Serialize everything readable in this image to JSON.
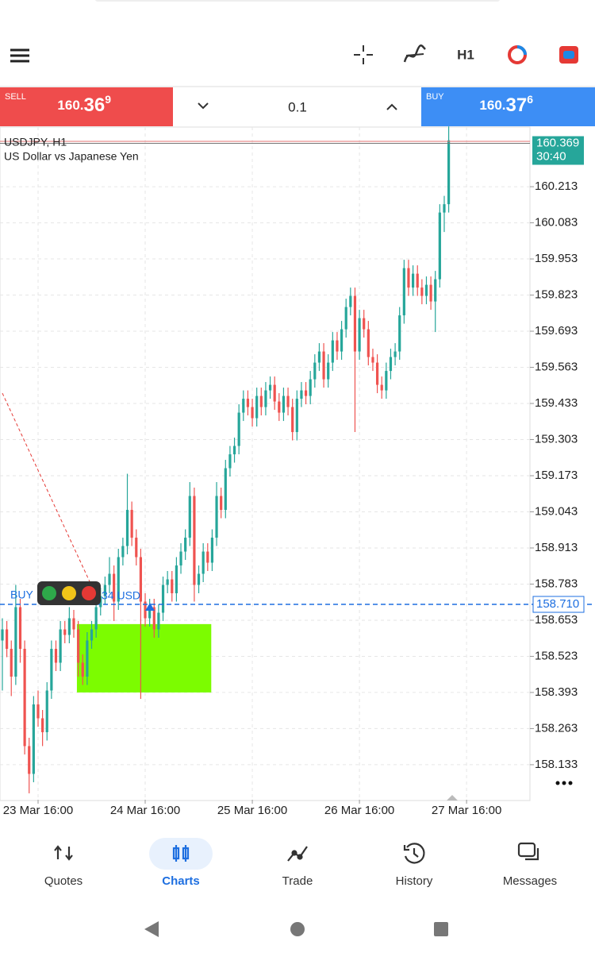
{
  "toolbar": {
    "timeframe": "H1"
  },
  "trade_panel": {
    "sell_label": "SELL",
    "sell_price": "160.369",
    "lot": "0.1",
    "buy_label": "BUY",
    "buy_price": "160.376"
  },
  "chart_data": {
    "type": "candlestick",
    "title": "USDJPY, H1",
    "subtitle": "US Dollar vs Japanese Yen",
    "up_color": "#26a69a",
    "down_color": "#ef5350",
    "grid": true,
    "ylim": [
      158.007,
      160.419
    ],
    "yticks": [
      158.133,
      158.263,
      158.393,
      158.523,
      158.653,
      158.783,
      158.913,
      159.043,
      159.173,
      159.303,
      159.433,
      159.563,
      159.693,
      159.823,
      159.953,
      160.083,
      160.213
    ],
    "xlim": [
      -0.53,
      118.2
    ],
    "xticks": [
      {
        "value": 8,
        "label": "23 Mar 16:00"
      },
      {
        "value": 32,
        "label": "24 Mar 16:00"
      },
      {
        "value": 56,
        "label": "25 Mar 16:00"
      },
      {
        "value": 80,
        "label": "26 Mar 16:00"
      },
      {
        "value": 104,
        "label": "27 Mar 16:00"
      }
    ],
    "bid": 160.369,
    "ask": 160.376,
    "countdown": "30:40",
    "buy_line": {
      "price": {
        "value": 158.71,
        "label": "158.710"
      },
      "label": "BUY",
      "profit": "34 USD"
    },
    "zone": {
      "x": [
        16.7,
        46.8
      ],
      "price": [
        158.393,
        158.639
      ],
      "color": "#7cfc00"
    },
    "trendline": {
      "points": [
        [
          0,
          159.47
        ],
        [
          19.9,
          158.78
        ]
      ],
      "color": "#e53935"
    },
    "candles": [
      [
        158.58,
        158.66,
        158.4,
        158.62
      ],
      [
        158.62,
        158.65,
        158.52,
        158.55
      ],
      [
        158.55,
        158.58,
        158.38,
        158.45
      ],
      [
        158.45,
        158.78,
        158.42,
        158.7
      ],
      [
        158.7,
        158.73,
        158.5,
        158.55
      ],
      [
        158.55,
        158.58,
        158.17,
        158.2
      ],
      [
        158.2,
        158.23,
        158.03,
        158.1
      ],
      [
        158.1,
        158.38,
        158.07,
        158.35
      ],
      [
        158.35,
        158.4,
        158.27,
        158.3
      ],
      [
        158.3,
        158.33,
        158.2,
        158.25
      ],
      [
        158.25,
        158.43,
        158.22,
        158.4
      ],
      [
        158.4,
        158.58,
        158.37,
        158.55
      ],
      [
        158.55,
        158.58,
        158.47,
        158.5
      ],
      [
        158.5,
        158.65,
        158.47,
        158.62
      ],
      [
        158.62,
        158.65,
        158.57,
        158.6
      ],
      [
        158.6,
        158.7,
        158.57,
        158.66
      ],
      [
        158.66,
        158.69,
        158.59,
        158.62
      ],
      [
        158.62,
        158.65,
        158.45,
        158.5
      ],
      [
        158.5,
        158.53,
        158.42,
        158.45
      ],
      [
        158.45,
        158.61,
        158.42,
        158.58
      ],
      [
        158.58,
        158.65,
        158.55,
        158.62
      ],
      [
        158.62,
        158.73,
        158.59,
        158.7
      ],
      [
        158.7,
        158.77,
        158.67,
        158.74
      ],
      [
        158.74,
        158.81,
        158.71,
        158.78
      ],
      [
        158.78,
        158.88,
        158.75,
        158.82
      ],
      [
        158.82,
        158.85,
        158.65,
        158.72
      ],
      [
        158.72,
        158.91,
        158.69,
        158.88
      ],
      [
        158.88,
        158.95,
        158.85,
        158.92
      ],
      [
        158.92,
        159.18,
        158.89,
        159.05
      ],
      [
        159.05,
        159.08,
        158.92,
        158.95
      ],
      [
        158.95,
        158.98,
        158.85,
        158.88
      ],
      [
        158.88,
        158.91,
        158.37,
        158.72
      ],
      [
        158.72,
        158.75,
        158.63,
        158.66
      ],
      [
        158.66,
        158.73,
        158.63,
        158.7
      ],
      [
        158.7,
        158.73,
        158.59,
        158.62
      ],
      [
        158.62,
        158.71,
        158.59,
        158.68
      ],
      [
        158.68,
        158.81,
        158.65,
        158.78
      ],
      [
        158.78,
        158.83,
        158.75,
        158.8
      ],
      [
        158.8,
        158.83,
        158.72,
        158.75
      ],
      [
        158.75,
        158.88,
        158.72,
        158.85
      ],
      [
        158.85,
        158.93,
        158.82,
        158.9
      ],
      [
        158.9,
        158.98,
        158.87,
        158.95
      ],
      [
        158.95,
        159.15,
        158.92,
        159.1
      ],
      [
        159.1,
        159.13,
        158.72,
        158.78
      ],
      [
        158.78,
        158.85,
        158.75,
        158.82
      ],
      [
        158.82,
        158.93,
        158.79,
        158.9
      ],
      [
        158.9,
        158.93,
        158.83,
        158.86
      ],
      [
        158.86,
        158.98,
        158.83,
        158.95
      ],
      [
        158.95,
        159.15,
        158.92,
        159.1
      ],
      [
        159.1,
        159.13,
        159.02,
        159.05
      ],
      [
        159.05,
        159.23,
        159.02,
        159.2
      ],
      [
        159.2,
        159.28,
        159.17,
        159.25
      ],
      [
        159.25,
        159.31,
        159.22,
        159.28
      ],
      [
        159.28,
        159.43,
        159.25,
        159.4
      ],
      [
        159.4,
        159.48,
        159.37,
        159.45
      ],
      [
        159.45,
        159.48,
        159.39,
        159.42
      ],
      [
        159.42,
        159.45,
        159.35,
        159.38
      ],
      [
        159.38,
        159.49,
        159.35,
        159.46
      ],
      [
        159.46,
        159.49,
        159.39,
        159.42
      ],
      [
        159.42,
        159.51,
        159.39,
        159.48
      ],
      [
        159.48,
        159.53,
        159.45,
        159.5
      ],
      [
        159.5,
        159.53,
        159.41,
        159.44
      ],
      [
        159.44,
        159.47,
        159.37,
        159.4
      ],
      [
        159.4,
        159.49,
        159.37,
        159.46
      ],
      [
        159.46,
        159.49,
        159.39,
        159.42
      ],
      [
        159.42,
        159.45,
        159.3,
        159.33
      ],
      [
        159.33,
        159.48,
        159.3,
        159.45
      ],
      [
        159.45,
        159.51,
        159.42,
        159.48
      ],
      [
        159.48,
        159.51,
        159.43,
        159.46
      ],
      [
        159.46,
        159.55,
        159.43,
        159.52
      ],
      [
        159.52,
        159.61,
        159.49,
        159.58
      ],
      [
        159.58,
        159.65,
        159.55,
        159.62
      ],
      [
        159.62,
        159.65,
        159.49,
        159.52
      ],
      [
        159.52,
        159.61,
        159.49,
        159.58
      ],
      [
        159.58,
        159.69,
        159.55,
        159.66
      ],
      [
        159.66,
        159.69,
        159.59,
        159.62
      ],
      [
        159.62,
        159.73,
        159.59,
        159.7
      ],
      [
        159.7,
        159.81,
        159.67,
        159.78
      ],
      [
        159.78,
        159.85,
        159.75,
        159.82
      ],
      [
        159.82,
        159.85,
        159.33,
        159.62
      ],
      [
        159.62,
        159.77,
        159.59,
        159.74
      ],
      [
        159.74,
        159.77,
        159.67,
        159.7
      ],
      [
        159.7,
        159.73,
        159.57,
        159.6
      ],
      [
        159.6,
        159.63,
        159.55,
        159.58
      ],
      [
        159.58,
        159.61,
        159.47,
        159.5
      ],
      [
        159.5,
        159.53,
        159.45,
        159.48
      ],
      [
        159.48,
        159.58,
        159.45,
        159.55
      ],
      [
        159.55,
        159.63,
        159.52,
        159.6
      ],
      [
        159.6,
        159.65,
        159.57,
        159.62
      ],
      [
        159.62,
        159.78,
        159.59,
        159.75
      ],
      [
        159.75,
        159.95,
        159.72,
        159.92
      ],
      [
        159.92,
        159.95,
        159.82,
        159.85
      ],
      [
        159.85,
        159.93,
        159.82,
        159.9
      ],
      [
        159.9,
        159.93,
        159.82,
        159.85
      ],
      [
        159.85,
        159.88,
        159.79,
        159.82
      ],
      [
        159.82,
        159.89,
        159.79,
        159.86
      ],
      [
        159.86,
        159.89,
        159.77,
        159.8
      ],
      [
        159.8,
        159.91,
        159.69,
        159.88
      ],
      [
        159.88,
        160.15,
        159.85,
        160.12
      ],
      [
        160.12,
        160.18,
        160.05,
        160.15
      ],
      [
        160.15,
        160.43,
        160.12,
        160.38
      ]
    ]
  },
  "tabs": [
    {
      "label": "Quotes"
    },
    {
      "label": "Charts"
    },
    {
      "label": "Trade"
    },
    {
      "label": "History"
    },
    {
      "label": "Messages"
    }
  ]
}
